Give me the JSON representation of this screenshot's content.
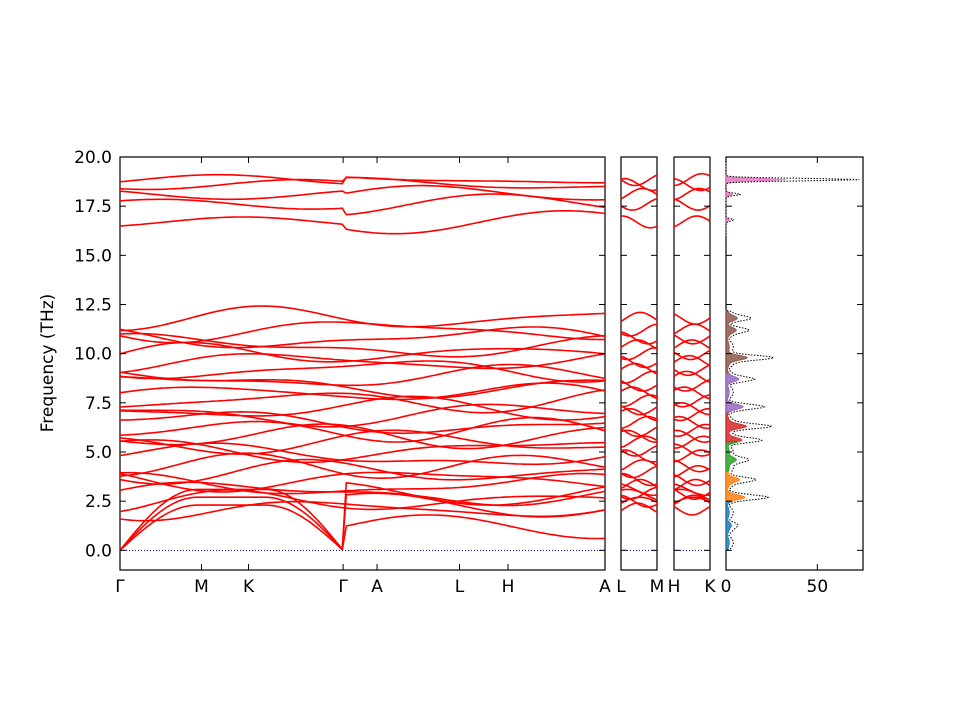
{
  "chart_data": {
    "type": "line",
    "title": "",
    "ylabel": "Frequency (THz)",
    "ylim": [
      -1.0,
      20.0
    ],
    "y_ticks": [
      "0.0",
      "2.5",
      "5.0",
      "7.5",
      "10.0",
      "12.5",
      "15.0",
      "17.5",
      "20.0"
    ],
    "y_tick_values": [
      0,
      2.5,
      5,
      7.5,
      10,
      12.5,
      15,
      17.5,
      20
    ],
    "band_color": "#ff0000",
    "zero_line_color": "#0000cc",
    "segments": [
      {
        "path": "Γ-M-K-Γ-A-L-H-A",
        "tick_labels": [
          "Γ",
          "M",
          "K",
          "Γ",
          "A",
          "L",
          "H",
          "A"
        ],
        "tick_positions": [
          0,
          0.168,
          0.265,
          0.46,
          0.53,
          0.7,
          0.8,
          1.0
        ]
      },
      {
        "path": "L-M",
        "tick_labels": [
          "L",
          "M"
        ],
        "tick_positions": [
          0,
          1.0
        ]
      },
      {
        "path": "H-K",
        "tick_labels": [
          "H",
          "K"
        ],
        "tick_positions": [
          0,
          1.0
        ]
      }
    ],
    "band_frequencies_at_gamma": [
      0,
      0,
      0,
      2.1,
      2.5,
      2.9,
      3.3,
      3.6,
      4.0,
      4.3,
      4.8,
      5.1,
      5.5,
      5.8,
      6.1,
      6.5,
      6.9,
      7.2,
      7.6,
      8.0,
      8.4,
      8.8,
      9.2,
      9.6,
      10.0,
      10.4,
      10.8,
      11.2,
      11.8,
      16.7,
      17.6,
      18.1,
      18.6,
      18.85
    ],
    "dos": {
      "type": "area",
      "xlim": [
        0,
        75
      ],
      "x_ticks": [
        "0",
        "50"
      ],
      "x_tick_values": [
        0,
        50
      ],
      "total_line_color": "#000000",
      "peaks": [
        {
          "freq": 18.85,
          "value": 73
        },
        {
          "freq": 18.1,
          "value": 8
        },
        {
          "freq": 16.8,
          "value": 4
        },
        {
          "freq": 11.8,
          "value": 10
        },
        {
          "freq": 11.2,
          "value": 9
        },
        {
          "freq": 9.8,
          "value": 23
        },
        {
          "freq": 8.7,
          "value": 12
        },
        {
          "freq": 7.3,
          "value": 17
        },
        {
          "freq": 6.3,
          "value": 22
        },
        {
          "freq": 5.6,
          "value": 16
        },
        {
          "freq": 4.6,
          "value": 11
        },
        {
          "freq": 3.6,
          "value": 13
        },
        {
          "freq": 2.7,
          "value": 19
        },
        {
          "freq": 1.3,
          "value": 3
        }
      ],
      "partial_colors": [
        "#1f77b4",
        "#ff7f0e",
        "#2ca02c",
        "#d62728",
        "#9467bd",
        "#8c564b",
        "#e377c2"
      ]
    }
  }
}
